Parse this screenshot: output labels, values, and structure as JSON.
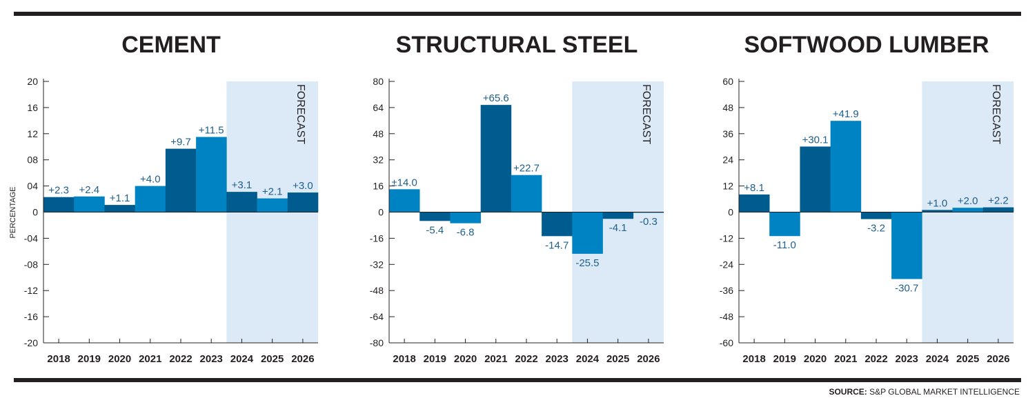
{
  "source": {
    "label": "SOURCE:",
    "text": "S&P GLOBAL MARKET INTELLIGENCE"
  },
  "colors": {
    "dark": "#005c8e",
    "light": "#0083c2",
    "forecast_bg": "#dce9f6",
    "label": "#1f5f8b",
    "axis": "#231f20"
  },
  "chart_data": [
    {
      "type": "bar",
      "title": "CEMENT",
      "ylabel": "PERCENTAGE",
      "forecast_label": "FORECAST",
      "categories": [
        "2018",
        "2019",
        "2020",
        "2021",
        "2022",
        "2023",
        "2024",
        "2025",
        "2026"
      ],
      "values": [
        2.3,
        2.4,
        1.1,
        4.0,
        9.7,
        11.5,
        3.1,
        2.1,
        3.0
      ],
      "value_labels": [
        "+2.3",
        "+2.4",
        "+1.1",
        "+4.0",
        "+9.7",
        "+11.5",
        "+3.1",
        "+2.1",
        "+3.0"
      ],
      "yticks": [
        20,
        16,
        12,
        8,
        4,
        0,
        -4,
        -8,
        -12,
        -16,
        -20
      ],
      "ytick_labels": [
        "20",
        "16",
        "12",
        "08",
        "04",
        "0",
        "-04",
        "-08",
        "-12",
        "-16",
        "-20"
      ],
      "ylim": [
        -20,
        20
      ],
      "forecast_start": "2024",
      "bar_shades": [
        "dark",
        "light",
        "dark",
        "light",
        "dark",
        "light",
        "dark",
        "light",
        "dark"
      ]
    },
    {
      "type": "bar",
      "title": "STRUCTURAL STEEL",
      "ylabel": "",
      "forecast_label": "FORECAST",
      "categories": [
        "2018",
        "2019",
        "2020",
        "2021",
        "2022",
        "2023",
        "2024",
        "2025",
        "2026"
      ],
      "values": [
        14.0,
        -5.4,
        -6.8,
        65.6,
        22.7,
        -14.7,
        -25.5,
        -4.1,
        -0.3
      ],
      "value_labels": [
        "±14.0",
        "-5.4",
        "-6.8",
        "+65.6",
        "+22.7",
        "-14.7",
        "-25.5",
        "-4.1",
        "-0.3"
      ],
      "yticks": [
        80,
        64,
        48,
        32,
        16,
        0,
        -16,
        -32,
        -48,
        -64,
        -80
      ],
      "ytick_labels": [
        "80",
        "64",
        "48",
        "32",
        "16",
        "0",
        "-16",
        "-32",
        "-48",
        "-64",
        "-80"
      ],
      "ylim": [
        -80,
        80
      ],
      "forecast_start": "2024",
      "bar_shades": [
        "light",
        "dark",
        "light",
        "dark",
        "light",
        "dark",
        "light",
        "dark",
        "light"
      ]
    },
    {
      "type": "bar",
      "title": "SOFTWOOD LUMBER",
      "ylabel": "",
      "forecast_label": "FORECAST",
      "categories": [
        "2018",
        "2019",
        "2020",
        "2021",
        "2022",
        "2023",
        "2024",
        "2025",
        "2026"
      ],
      "values": [
        8.1,
        -11.0,
        30.1,
        41.9,
        -3.2,
        -30.7,
        1.0,
        2.0,
        2.2
      ],
      "value_labels": [
        "+8.1",
        "-11.0",
        "+30.1",
        "+41.9",
        "-3.2",
        "-30.7",
        "+1.0",
        "+2.0",
        "+2.2"
      ],
      "yticks": [
        60,
        48,
        36,
        24,
        12,
        0,
        -12,
        -24,
        -36,
        -48,
        -60
      ],
      "ytick_labels": [
        "60",
        "48",
        "36",
        "24",
        "12",
        "0",
        "-12",
        "-24",
        "-36",
        "-48",
        "-60"
      ],
      "ylim": [
        -60,
        60
      ],
      "forecast_start": "2024",
      "bar_shades": [
        "dark",
        "light",
        "dark",
        "light",
        "dark",
        "light",
        "dark",
        "light",
        "dark"
      ]
    }
  ]
}
